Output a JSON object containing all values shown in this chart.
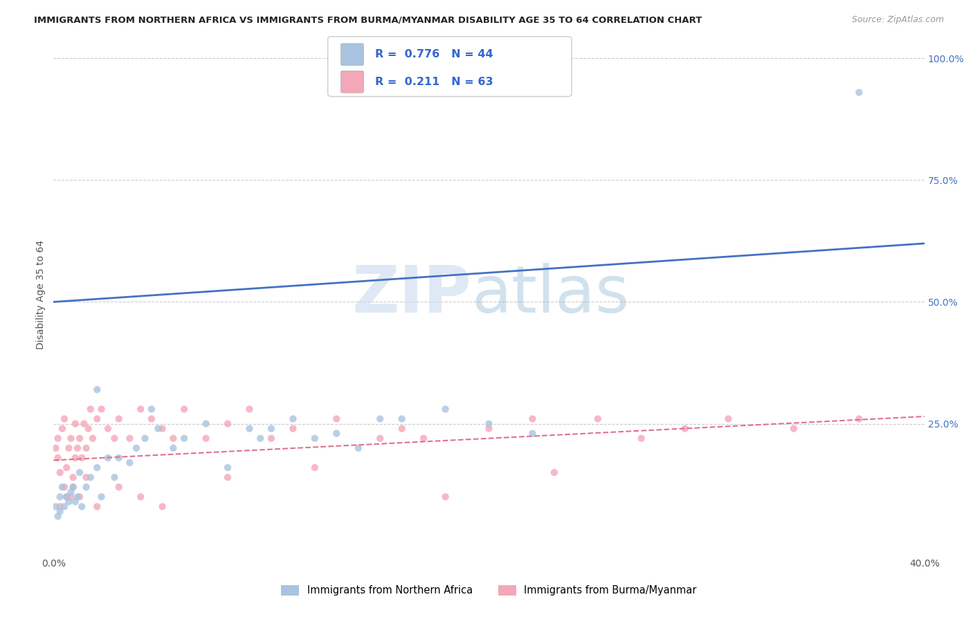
{
  "title": "IMMIGRANTS FROM NORTHERN AFRICA VS IMMIGRANTS FROM BURMA/MYANMAR DISABILITY AGE 35 TO 64 CORRELATION CHART",
  "source": "Source: ZipAtlas.com",
  "xlabel": "",
  "ylabel": "Disability Age 35 to 64",
  "xlim": [
    0.0,
    0.4
  ],
  "ylim": [
    -0.02,
    1.05
  ],
  "x_ticks": [
    0.0,
    0.1,
    0.2,
    0.3,
    0.4
  ],
  "x_tick_labels": [
    "0.0%",
    "",
    "",
    "",
    "40.0%"
  ],
  "y_ticks": [
    0.0,
    0.25,
    0.5,
    0.75,
    1.0
  ],
  "y_tick_labels": [
    "",
    "25.0%",
    "50.0%",
    "75.0%",
    "100.0%"
  ],
  "legend_label1": "Immigrants from Northern Africa",
  "legend_label2": "Immigrants from Burma/Myanmar",
  "R1": 0.776,
  "N1": 44,
  "R2": 0.211,
  "N2": 63,
  "color1": "#a8c4e0",
  "color2": "#f4a7b9",
  "line_color1": "#4472c4",
  "line_color2": "#e07090",
  "background_color": "#ffffff",
  "line1_x0": 0.0,
  "line1_y0": 0.5,
  "line1_x1": 0.4,
  "line1_y1": 0.62,
  "line2_x0": 0.0,
  "line2_y0": 0.175,
  "line2_x1": 0.4,
  "line2_y1": 0.265,
  "scatter1_x": [
    0.001,
    0.002,
    0.003,
    0.003,
    0.004,
    0.005,
    0.006,
    0.007,
    0.008,
    0.009,
    0.01,
    0.011,
    0.012,
    0.013,
    0.015,
    0.017,
    0.02,
    0.022,
    0.025,
    0.028,
    0.03,
    0.035,
    0.038,
    0.042,
    0.048,
    0.055,
    0.06,
    0.07,
    0.08,
    0.095,
    0.1,
    0.11,
    0.12,
    0.14,
    0.16,
    0.13,
    0.15,
    0.18,
    0.2,
    0.22,
    0.02,
    0.045,
    0.09,
    0.37
  ],
  "scatter1_y": [
    0.08,
    0.06,
    0.1,
    0.07,
    0.12,
    0.08,
    0.1,
    0.09,
    0.11,
    0.12,
    0.09,
    0.1,
    0.15,
    0.08,
    0.12,
    0.14,
    0.16,
    0.1,
    0.18,
    0.14,
    0.18,
    0.17,
    0.2,
    0.22,
    0.24,
    0.2,
    0.22,
    0.25,
    0.16,
    0.22,
    0.24,
    0.26,
    0.22,
    0.2,
    0.26,
    0.23,
    0.26,
    0.28,
    0.25,
    0.23,
    0.32,
    0.28,
    0.24,
    0.93
  ],
  "scatter2_x": [
    0.001,
    0.002,
    0.002,
    0.003,
    0.004,
    0.005,
    0.005,
    0.006,
    0.007,
    0.008,
    0.008,
    0.009,
    0.01,
    0.01,
    0.011,
    0.012,
    0.013,
    0.014,
    0.015,
    0.016,
    0.017,
    0.018,
    0.02,
    0.022,
    0.025,
    0.028,
    0.03,
    0.035,
    0.04,
    0.045,
    0.05,
    0.055,
    0.06,
    0.07,
    0.08,
    0.09,
    0.1,
    0.11,
    0.13,
    0.15,
    0.16,
    0.17,
    0.2,
    0.22,
    0.25,
    0.27,
    0.29,
    0.31,
    0.34,
    0.37,
    0.003,
    0.006,
    0.009,
    0.012,
    0.015,
    0.02,
    0.03,
    0.05,
    0.08,
    0.12,
    0.18,
    0.04,
    0.23
  ],
  "scatter2_y": [
    0.2,
    0.18,
    0.22,
    0.15,
    0.24,
    0.12,
    0.26,
    0.16,
    0.2,
    0.1,
    0.22,
    0.14,
    0.25,
    0.18,
    0.2,
    0.22,
    0.18,
    0.25,
    0.2,
    0.24,
    0.28,
    0.22,
    0.26,
    0.28,
    0.24,
    0.22,
    0.26,
    0.22,
    0.28,
    0.26,
    0.24,
    0.22,
    0.28,
    0.22,
    0.25,
    0.28,
    0.22,
    0.24,
    0.26,
    0.22,
    0.24,
    0.22,
    0.24,
    0.26,
    0.26,
    0.22,
    0.24,
    0.26,
    0.24,
    0.26,
    0.08,
    0.1,
    0.12,
    0.1,
    0.14,
    0.08,
    0.12,
    0.08,
    0.14,
    0.16,
    0.1,
    0.1,
    0.15
  ]
}
